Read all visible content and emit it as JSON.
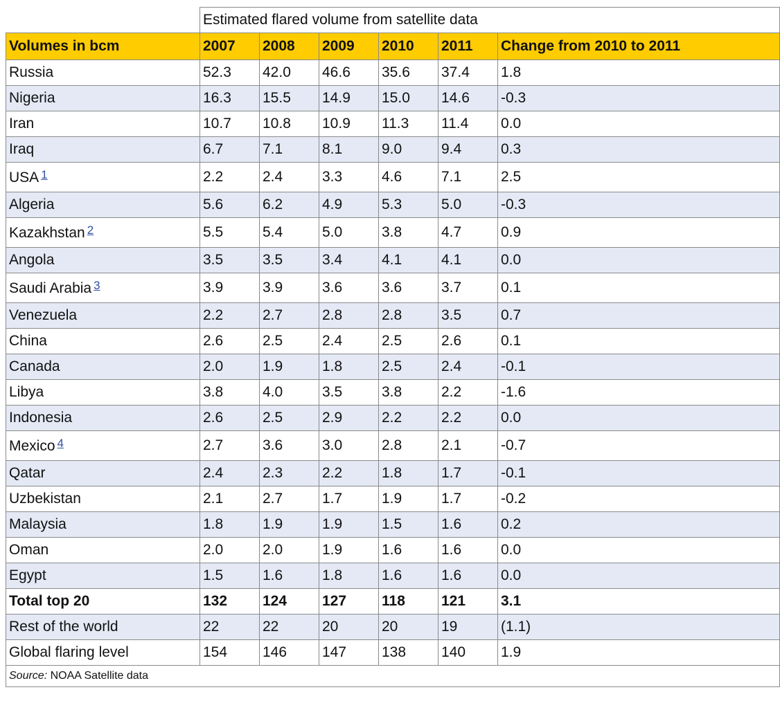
{
  "table": {
    "super_header": "Estimated flared volume from satellite data",
    "headers": [
      "Volumes in bcm",
      "2007",
      "2008",
      "2009",
      "2010",
      "2011",
      "Change from 2010 to 2011"
    ],
    "rows": [
      {
        "country": "Russia",
        "footnote": "",
        "values": [
          "52.3",
          "42.0",
          "46.6",
          "35.6",
          "37.4",
          "1.8"
        ]
      },
      {
        "country": "Nigeria",
        "footnote": "",
        "values": [
          "16.3",
          "15.5",
          "14.9",
          "15.0",
          "14.6",
          "-0.3"
        ]
      },
      {
        "country": "Iran",
        "footnote": "",
        "values": [
          "10.7",
          "10.8",
          "10.9",
          "11.3",
          "11.4",
          "0.0"
        ]
      },
      {
        "country": "Iraq",
        "footnote": "",
        "values": [
          "6.7",
          "7.1",
          "8.1",
          "9.0",
          "9.4",
          "0.3"
        ]
      },
      {
        "country": "USA",
        "footnote": "1",
        "values": [
          "2.2",
          "2.4",
          "3.3",
          "4.6",
          "7.1",
          "2.5"
        ]
      },
      {
        "country": "Algeria",
        "footnote": "",
        "values": [
          "5.6",
          "6.2",
          "4.9",
          "5.3",
          "5.0",
          "-0.3"
        ]
      },
      {
        "country": "Kazakhstan",
        "footnote": "2",
        "values": [
          "5.5",
          "5.4",
          "5.0",
          "3.8",
          "4.7",
          "0.9"
        ]
      },
      {
        "country": "Angola",
        "footnote": "",
        "values": [
          "3.5",
          "3.5",
          "3.4",
          "4.1",
          "4.1",
          "0.0"
        ]
      },
      {
        "country": "Saudi Arabia",
        "footnote": "3",
        "values": [
          "3.9",
          "3.9",
          "3.6",
          "3.6",
          "3.7",
          "0.1"
        ]
      },
      {
        "country": "Venezuela",
        "footnote": "",
        "values": [
          "2.2",
          "2.7",
          "2.8",
          "2.8",
          "3.5",
          "0.7"
        ]
      },
      {
        "country": "China",
        "footnote": "",
        "values": [
          "2.6",
          "2.5",
          "2.4",
          "2.5",
          "2.6",
          "0.1"
        ]
      },
      {
        "country": "Canada",
        "footnote": "",
        "values": [
          "2.0",
          "1.9",
          "1.8",
          "2.5",
          "2.4",
          "-0.1"
        ]
      },
      {
        "country": "Libya",
        "footnote": "",
        "values": [
          "3.8",
          "4.0",
          "3.5",
          "3.8",
          "2.2",
          "-1.6"
        ]
      },
      {
        "country": "Indonesia",
        "footnote": "",
        "values": [
          "2.6",
          "2.5",
          "2.9",
          "2.2",
          "2.2",
          "0.0"
        ]
      },
      {
        "country": "Mexico",
        "footnote": "4",
        "values": [
          "2.7",
          "3.6",
          "3.0",
          "2.8",
          "2.1",
          "-0.7"
        ]
      },
      {
        "country": "Qatar",
        "footnote": "",
        "values": [
          "2.4",
          "2.3",
          "2.2",
          "1.8",
          "1.7",
          "-0.1"
        ]
      },
      {
        "country": "Uzbekistan",
        "footnote": "",
        "values": [
          "2.1",
          "2.7",
          "1.7",
          "1.9",
          "1.7",
          "-0.2"
        ]
      },
      {
        "country": "Malaysia",
        "footnote": "",
        "values": [
          "1.8",
          "1.9",
          "1.9",
          "1.5",
          "1.6",
          "0.2"
        ]
      },
      {
        "country": "Oman",
        "footnote": "",
        "values": [
          "2.0",
          "2.0",
          "1.9",
          "1.6",
          "1.6",
          "0.0"
        ]
      },
      {
        "country": "Egypt",
        "footnote": "",
        "values": [
          "1.5",
          "1.6",
          "1.8",
          "1.6",
          "1.6",
          "0.0"
        ]
      }
    ],
    "summary_rows": [
      {
        "label": "Total top 20",
        "values": [
          "132",
          "124",
          "127",
          "118",
          "121",
          "3.1"
        ],
        "bold": true
      },
      {
        "label": "Rest of the world",
        "values": [
          "22",
          "22",
          "20",
          "20",
          "19",
          "(1.1)"
        ],
        "bold": false
      },
      {
        "label": "Global flaring level",
        "values": [
          "154",
          "146",
          "147",
          "138",
          "140",
          "1.9"
        ],
        "bold": false
      }
    ],
    "source_label": "Source:",
    "source_text": " NOAA Satellite data",
    "colors": {
      "header_bg": "#ffcc00",
      "alt_row_bg": "#e4e9f5",
      "border": "#8a8a8a",
      "footnote_link": "#3050a0"
    }
  }
}
